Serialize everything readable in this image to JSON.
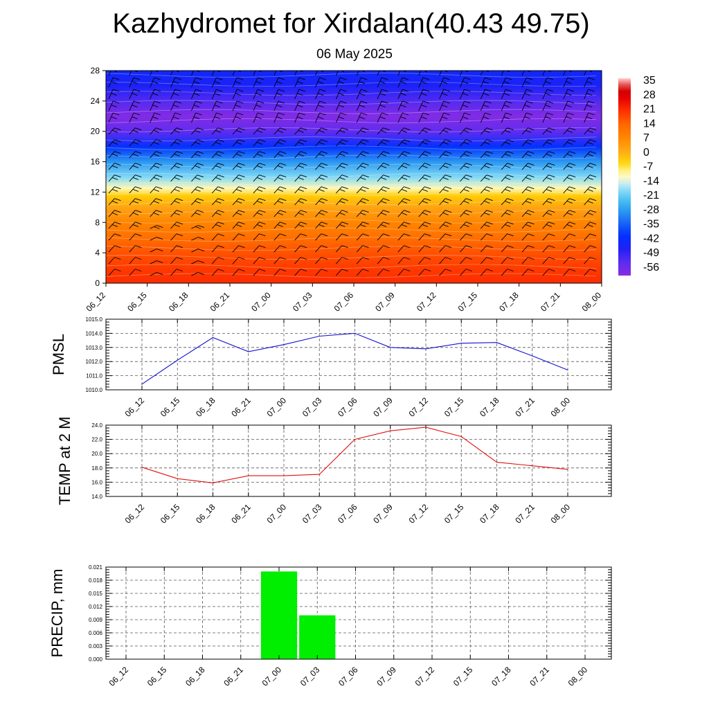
{
  "title": "Kazhydromet for Xirdalan(40.43 49.75)",
  "subtitle": "06 May 2025",
  "colors": {
    "pmsl_line": "#1010d0",
    "temp_line": "#e01010",
    "precip_bar": "#00ee00",
    "barb": "#000000"
  },
  "chart_data": [
    {
      "id": "cross-section",
      "type": "heatmap",
      "title": "",
      "xlabel": "",
      "ylabel": "",
      "categories": [
        "06_12",
        "06_15",
        "06_18",
        "06_21",
        "07_00",
        "07_03",
        "07_06",
        "07_09",
        "07_12",
        "07_15",
        "07_18",
        "07_21",
        "08_00"
      ],
      "y_ticks": [
        0,
        4,
        8,
        12,
        16,
        20,
        24,
        28
      ],
      "ylim": [
        0,
        28
      ],
      "colorbar_labels": [
        "35",
        "28",
        "21",
        "14",
        "7",
        "0",
        "-7",
        "-14",
        "-21",
        "-28",
        "-35",
        "-42",
        "-49",
        "-56"
      ],
      "colorbar_range": [
        -63,
        38
      ],
      "value_profile": [
        {
          "level": 0,
          "value": 22
        },
        {
          "level": 2,
          "value": 20
        },
        {
          "level": 4,
          "value": 17
        },
        {
          "level": 6,
          "value": 13
        },
        {
          "level": 8,
          "value": 8
        },
        {
          "level": 10,
          "value": 2
        },
        {
          "level": 11.5,
          "value": -4
        },
        {
          "level": 12.5,
          "value": -12
        },
        {
          "level": 14,
          "value": -20
        },
        {
          "level": 16,
          "value": -30
        },
        {
          "level": 18,
          "value": -43
        },
        {
          "level": 20,
          "value": -57
        },
        {
          "level": 22,
          "value": -62
        },
        {
          "level": 24,
          "value": -55
        },
        {
          "level": 26,
          "value": -48
        },
        {
          "level": 28,
          "value": -46
        }
      ],
      "wind_barbs": true,
      "grid": false
    },
    {
      "id": "pmsl",
      "type": "line",
      "title": "",
      "ylabel": "PMSL",
      "categories": [
        "06_12",
        "06_15",
        "06_18",
        "06_21",
        "07_00",
        "07_03",
        "07_06",
        "07_09",
        "07_12",
        "07_15",
        "07_18",
        "07_21",
        "08_00"
      ],
      "series": [
        {
          "values": [
            1010.4,
            1012.1,
            1013.7,
            1012.7,
            1013.2,
            1013.8,
            1014.0,
            1013.0,
            1012.9,
            1013.3,
            1013.35,
            1012.4,
            1011.4
          ]
        }
      ],
      "y_ticks": [
        "1010.0",
        "1011.0",
        "1012.0",
        "1013.0",
        "1014.0",
        "1015.0"
      ],
      "ylim": [
        1010,
        1015
      ],
      "grid": true
    },
    {
      "id": "temp",
      "type": "line",
      "title": "",
      "ylabel": "TEMP at 2 M",
      "categories": [
        "06_12",
        "06_15",
        "06_18",
        "06_21",
        "07_00",
        "07_03",
        "07_06",
        "07_09",
        "07_12",
        "07_15",
        "07_18",
        "07_21",
        "08_00"
      ],
      "series": [
        {
          "values": [
            18.1,
            16.5,
            15.9,
            16.9,
            16.9,
            17.1,
            22.0,
            23.2,
            23.7,
            22.4,
            18.8,
            18.3,
            17.8
          ]
        }
      ],
      "y_ticks": [
        "14.0",
        "16.0",
        "18.0",
        "20.0",
        "22.0",
        "24.0"
      ],
      "ylim": [
        14,
        24
      ],
      "grid": true
    },
    {
      "id": "precip",
      "type": "bar",
      "title": "",
      "ylabel": "PRECIP, mm",
      "categories": [
        "06_12",
        "06_15",
        "06_18",
        "06_21",
        "07_00",
        "07_03",
        "07_06",
        "07_09",
        "07_12",
        "07_15",
        "07_18",
        "07_21",
        "08_00"
      ],
      "values": [
        0,
        0,
        0,
        0,
        0.02,
        0.01,
        0,
        0,
        0,
        0,
        0,
        0,
        0
      ],
      "y_ticks": [
        "0.000",
        "0.003",
        "0.006",
        "0.009",
        "0.012",
        "0.015",
        "0.018",
        "0.021"
      ],
      "ylim": [
        0,
        0.021
      ],
      "grid": true
    }
  ]
}
